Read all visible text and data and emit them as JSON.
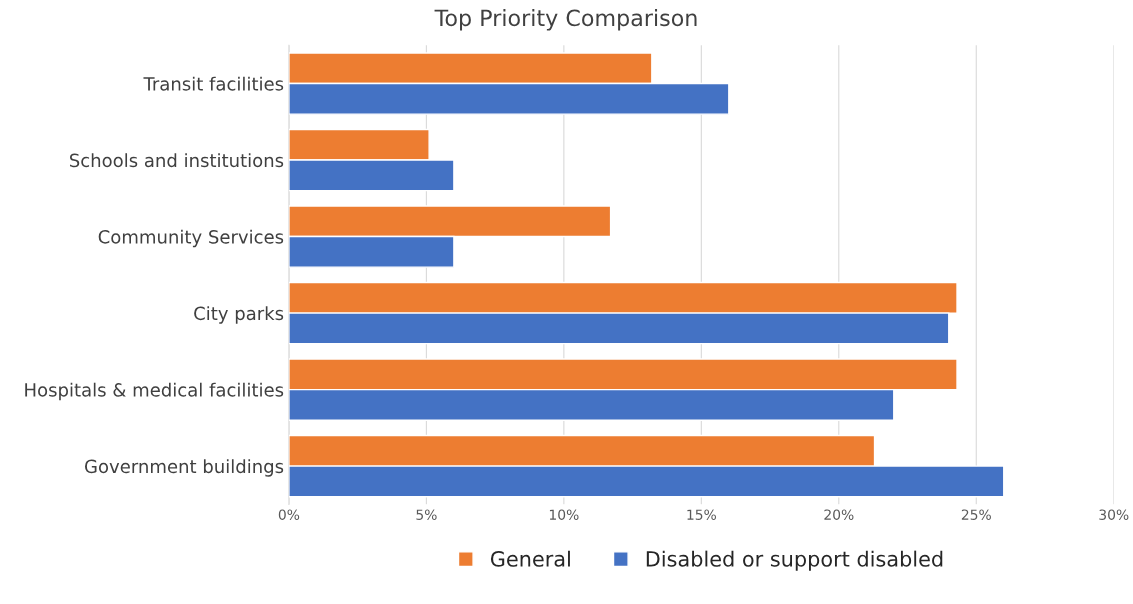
{
  "chart_data": {
    "type": "bar",
    "orientation": "horizontal",
    "title": "Top Priority Comparison",
    "categories": [
      "Transit facilities",
      "Schools and institutions",
      "Community Services",
      "City parks",
      "Hospitals & medical facilities",
      "Government buildings"
    ],
    "series": [
      {
        "name": "General",
        "color": "#ed7d31",
        "values": [
          13.2,
          5.1,
          11.7,
          24.3,
          24.3,
          21.3
        ]
      },
      {
        "name": "Disabled or support disabled",
        "color": "#4472c4",
        "values": [
          16.0,
          6.0,
          6.0,
          24.0,
          22.0,
          26.0
        ]
      }
    ],
    "xlim": [
      0,
      30
    ],
    "xticks": [
      {
        "value": 0,
        "label": "0%"
      },
      {
        "value": 5,
        "label": "5%"
      },
      {
        "value": 10,
        "label": "10%"
      },
      {
        "value": 15,
        "label": "15%"
      },
      {
        "value": 20,
        "label": "20%"
      },
      {
        "value": 25,
        "label": "25%"
      },
      {
        "value": 30,
        "label": "30%"
      }
    ],
    "grid": "x",
    "legend": "bottom"
  }
}
